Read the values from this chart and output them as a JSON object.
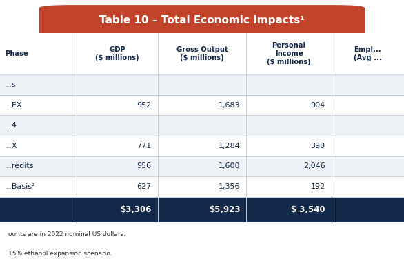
{
  "title": "Table 10 – Total Economic Impacts¹",
  "title_bg": "#c0432a",
  "title_color": "#ffffff",
  "header_row": [
    "Phase",
    "GDP\n($ millions)",
    "Gross Output\n($ millions)",
    "Personal\nIncome\n($ millions)",
    "Empl...\n(Avg ..."
  ],
  "rows": [
    [
      "...s",
      "",
      "",
      "",
      ""
    ],
    [
      "...EX",
      "952",
      "1,683",
      "904",
      ""
    ],
    [
      "...4",
      "",
      "",
      "",
      ""
    ],
    [
      "...X",
      "771",
      "1,284",
      "398",
      ""
    ],
    [
      "...redits",
      "956",
      "1,600",
      "2,046",
      ""
    ],
    [
      "...Basis²",
      "627",
      "1,356",
      "192",
      ""
    ]
  ],
  "total_row": [
    "",
    "$3,306",
    "$5,923",
    "$ 3,540",
    ""
  ],
  "total_bg": "#12294a",
  "total_color": "#ffffff",
  "footnote1": "ounts are in 2022 nominal US dollars.",
  "footnote2": "15% ethanol expansion scenario.",
  "bg_color": "#ffffff",
  "row_bg_odd": "#eef2f7",
  "row_bg_even": "#ffffff",
  "header_text_color": "#12294a",
  "cell_text_color": "#12294a",
  "grid_color": "#c8d4e0",
  "col_starts": [
    0.0,
    0.19,
    0.39,
    0.61,
    0.82
  ],
  "col_ends": [
    0.19,
    0.39,
    0.61,
    0.82,
    1.0
  ]
}
